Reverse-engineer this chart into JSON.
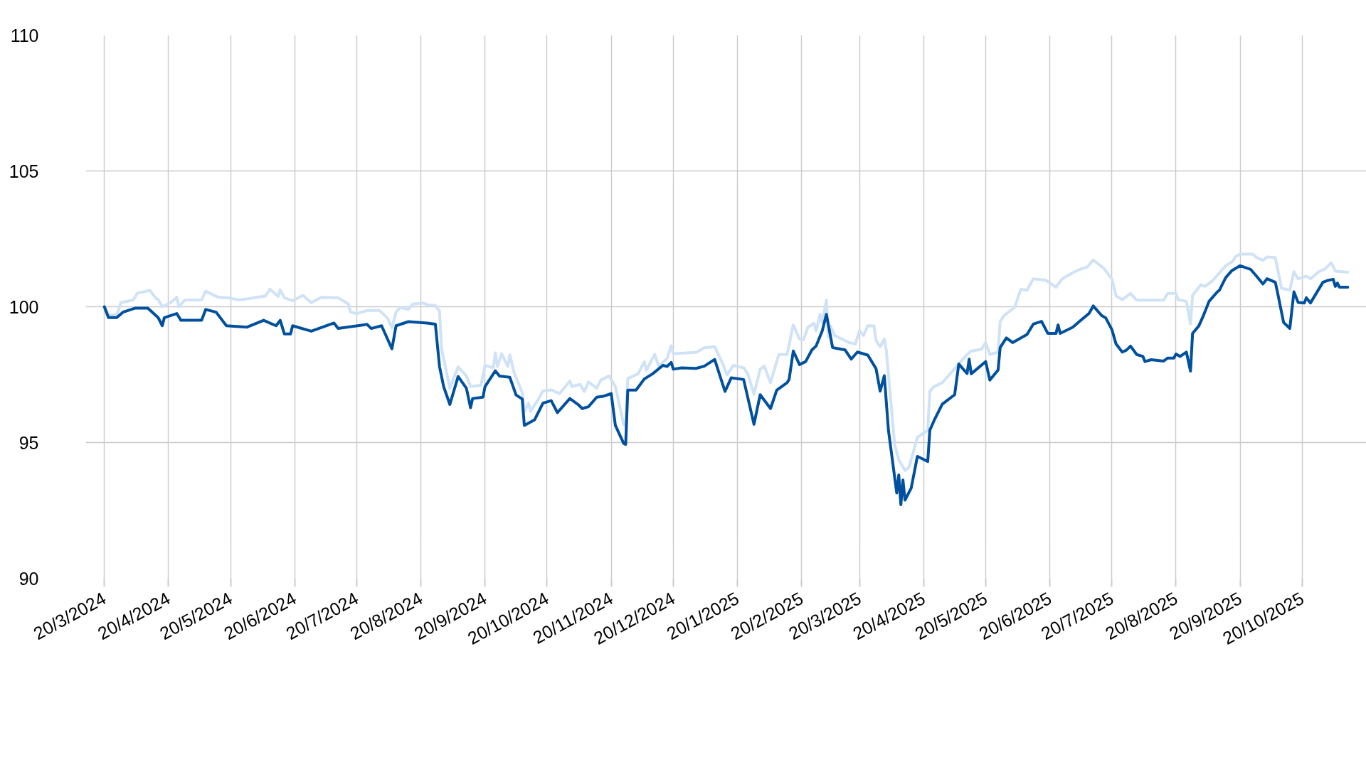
{
  "chart_data": {
    "type": "line",
    "xlim": [
      "2024-03-11",
      "2025-11-20"
    ],
    "ylim": [
      90,
      110
    ],
    "yticks": [
      90,
      95,
      100,
      105,
      110
    ],
    "xticks": [
      {
        "value": "2024-03-20",
        "label": "20/3/2024"
      },
      {
        "value": "2024-04-20",
        "label": "20/4/2024"
      },
      {
        "value": "2024-05-20",
        "label": "20/5/2024"
      },
      {
        "value": "2024-06-20",
        "label": "20/6/2024"
      },
      {
        "value": "2024-07-20",
        "label": "20/7/2024"
      },
      {
        "value": "2024-08-20",
        "label": "20/8/2024"
      },
      {
        "value": "2024-09-20",
        "label": "20/9/2024"
      },
      {
        "value": "2024-10-20",
        "label": "20/10/2024"
      },
      {
        "value": "2024-11-20",
        "label": "20/11/2024"
      },
      {
        "value": "2024-12-20",
        "label": "20/12/2024"
      },
      {
        "value": "2025-01-20",
        "label": "20/1/2025"
      },
      {
        "value": "2025-02-20",
        "label": "20/2/2025"
      },
      {
        "value": "2025-03-20",
        "label": "20/3/2025"
      },
      {
        "value": "2025-04-20",
        "label": "20/4/2025"
      },
      {
        "value": "2025-05-20",
        "label": "20/5/2025"
      },
      {
        "value": "2025-06-20",
        "label": "20/6/2025"
      },
      {
        "value": "2025-07-20",
        "label": "20/7/2025"
      },
      {
        "value": "2025-08-20",
        "label": "20/8/2025"
      },
      {
        "value": "2025-09-20",
        "label": "20/9/2025"
      },
      {
        "value": "2025-10-20",
        "label": "20/10/2025"
      }
    ],
    "grid": true,
    "series": [
      {
        "color": "#cfe2f6",
        "x": [
          "2024-03-20",
          "2024-03-22",
          "2024-03-26",
          "2024-03-28",
          "2024-04-03",
          "2024-04-05",
          "2024-04-11",
          "2024-04-14",
          "2024-04-15",
          "2024-04-17",
          "2024-04-21",
          "2024-04-24",
          "2024-04-25",
          "2024-04-28",
          "2024-05-06",
          "2024-05-08",
          "2024-05-14",
          "2024-05-19",
          "2024-05-24",
          "2024-05-29",
          "2024-06-06",
          "2024-06-08",
          "2024-06-12",
          "2024-06-13",
          "2024-06-15",
          "2024-06-19",
          "2024-06-24",
          "2024-06-28",
          "2024-07-03",
          "2024-07-11",
          "2024-07-16",
          "2024-07-17",
          "2024-07-20",
          "2024-07-25",
          "2024-07-31",
          "2024-08-04",
          "2024-08-06",
          "2024-08-08",
          "2024-08-10",
          "2024-08-14",
          "2024-08-16",
          "2024-08-21",
          "2024-08-24",
          "2024-08-27",
          "2024-08-29",
          "2024-08-30",
          "2024-09-03",
          "2024-09-07",
          "2024-09-11",
          "2024-09-13",
          "2024-09-18",
          "2024-09-20",
          "2024-09-24",
          "2024-09-25",
          "2024-09-26",
          "2024-09-28",
          "2024-10-01",
          "2024-10-02",
          "2024-10-04",
          "2024-10-08",
          "2024-10-09",
          "2024-10-11",
          "2024-10-12",
          "2024-10-16",
          "2024-10-18",
          "2024-10-22",
          "2024-10-26",
          "2024-10-31",
          "2024-11-01",
          "2024-11-05",
          "2024-11-07",
          "2024-11-09",
          "2024-11-13",
          "2024-11-15",
          "2024-11-19",
          "2024-11-22",
          "2024-11-26",
          "2024-11-27",
          "2024-11-28",
          "2024-12-03",
          "2024-12-06",
          "2024-12-07",
          "2024-12-11",
          "2024-12-13",
          "2024-12-17",
          "2024-12-19",
          "2024-12-20",
          "2024-12-31",
          "2025-01-04",
          "2025-01-09",
          "2025-01-13",
          "2025-01-15",
          "2025-01-18",
          "2025-01-23",
          "2025-01-25",
          "2025-01-28",
          "2025-01-31",
          "2025-02-02",
          "2025-02-05",
          "2025-02-09",
          "2025-02-13",
          "2025-02-16",
          "2025-02-19",
          "2025-02-21",
          "2025-02-23",
          "2025-02-26",
          "2025-02-27",
          "2025-03-01",
          "2025-03-02",
          "2025-03-04",
          "2025-03-05",
          "2025-03-06",
          "2025-03-08",
          "2025-03-15",
          "2025-03-18",
          "2025-03-20",
          "2025-03-22",
          "2025-03-24",
          "2025-03-27",
          "2025-03-28",
          "2025-03-30",
          "2025-04-01",
          "2025-04-02",
          "2025-04-06",
          "2025-04-08",
          "2025-04-11",
          "2025-04-13",
          "2025-04-17",
          "2025-04-22",
          "2025-04-23",
          "2025-04-25",
          "2025-04-29",
          "2025-05-05",
          "2025-05-08",
          "2025-05-11",
          "2025-05-13",
          "2025-05-18",
          "2025-05-20",
          "2025-05-22",
          "2025-05-26",
          "2025-05-27",
          "2025-05-29",
          "2025-06-03",
          "2025-06-06",
          "2025-06-09",
          "2025-06-12",
          "2025-06-18",
          "2025-06-23",
          "2025-06-26",
          "2025-06-28",
          "2025-07-02",
          "2025-07-05",
          "2025-07-08",
          "2025-07-11",
          "2025-07-16",
          "2025-07-20",
          "2025-07-22",
          "2025-07-25",
          "2025-07-29",
          "2025-08-01",
          "2025-08-14",
          "2025-08-16",
          "2025-08-20",
          "2025-08-21",
          "2025-08-25",
          "2025-08-27",
          "2025-08-28",
          "2025-09-01",
          "2025-09-03",
          "2025-09-07",
          "2025-09-10",
          "2025-09-13",
          "2025-09-16",
          "2025-09-18",
          "2025-09-20",
          "2025-09-26",
          "2025-09-28",
          "2025-10-01",
          "2025-10-03",
          "2025-10-07",
          "2025-10-10",
          "2025-10-14",
          "2025-10-16",
          "2025-10-18",
          "2025-10-22",
          "2025-10-24",
          "2025-10-28",
          "2025-10-31",
          "2025-11-03",
          "2025-11-05",
          "2025-11-11"
        ],
        "values": [
          100.0,
          99.7,
          99.7,
          100.15,
          100.25,
          100.5,
          100.6,
          100.3,
          100.27,
          100.0,
          100.15,
          100.35,
          100.0,
          100.25,
          100.25,
          100.57,
          100.35,
          100.33,
          100.25,
          100.3,
          100.4,
          100.65,
          100.38,
          100.62,
          100.33,
          100.22,
          100.42,
          100.15,
          100.35,
          100.33,
          100.1,
          99.8,
          99.75,
          99.86,
          99.86,
          99.57,
          99.22,
          99.8,
          99.97,
          99.9,
          100.1,
          100.14,
          100.05,
          100.05,
          99.84,
          98.45,
          97.0,
          97.78,
          97.45,
          97.06,
          97.1,
          97.84,
          97.75,
          98.3,
          97.8,
          98.27,
          97.8,
          98.23,
          97.58,
          96.84,
          96.15,
          96.45,
          96.15,
          96.62,
          96.9,
          96.94,
          96.8,
          97.26,
          97.06,
          97.14,
          96.88,
          97.23,
          97.0,
          97.3,
          97.45,
          97.06,
          95.67,
          95.63,
          97.36,
          97.53,
          97.97,
          97.66,
          98.25,
          97.8,
          98.1,
          98.56,
          98.27,
          98.32,
          98.49,
          98.53,
          97.88,
          97.49,
          97.84,
          97.75,
          97.53,
          96.77,
          97.7,
          97.81,
          97.2,
          98.24,
          98.24,
          99.33,
          98.81,
          98.78,
          99.24,
          99.39,
          99.11,
          99.72,
          99.42,
          100.24,
          98.89,
          99.29,
          98.94,
          98.68,
          98.63,
          99.11,
          98.94,
          99.3,
          99.29,
          98.76,
          98.52,
          98.81,
          98.37,
          94.93,
          94.36,
          93.97,
          94.1,
          95.19,
          95.45,
          96.89,
          97.06,
          97.2,
          97.72,
          97.98,
          98.24,
          98.37,
          98.43,
          98.68,
          98.24,
          98.33,
          99.46,
          99.68,
          99.98,
          100.64,
          100.61,
          101.03,
          100.98,
          100.72,
          101.03,
          101.12,
          101.29,
          101.39,
          101.46,
          101.72,
          101.42,
          101.03,
          100.4,
          100.26,
          100.49,
          100.24,
          100.24,
          100.49,
          100.49,
          100.26,
          100.2,
          99.37,
          100.42,
          100.81,
          100.75,
          100.98,
          101.25,
          101.51,
          101.64,
          101.86,
          101.94,
          101.94,
          101.81,
          101.71,
          101.83,
          101.81,
          100.68,
          100.61,
          101.29,
          101.03,
          101.13,
          101.03,
          101.29,
          101.39,
          101.62,
          101.31,
          101.27
        ]
      },
      {
        "color": "#00509e",
        "x": [
          "2024-03-20",
          "2024-03-22",
          "2024-03-26",
          "2024-03-29",
          "2024-04-04",
          "2024-04-10",
          "2024-04-15",
          "2024-04-17",
          "2024-04-18",
          "2024-04-24",
          "2024-04-26",
          "2024-05-06",
          "2024-05-08",
          "2024-05-13",
          "2024-05-18",
          "2024-05-28",
          "2024-06-05",
          "2024-06-11",
          "2024-06-13",
          "2024-06-15",
          "2024-06-18",
          "2024-06-19",
          "2024-06-28",
          "2024-07-09",
          "2024-07-11",
          "2024-07-25",
          "2024-07-27",
          "2024-08-01",
          "2024-08-06",
          "2024-08-08",
          "2024-08-14",
          "2024-08-23",
          "2024-08-27",
          "2024-08-29",
          "2024-08-31",
          "2024-09-03",
          "2024-09-07",
          "2024-09-11",
          "2024-09-13",
          "2024-09-14",
          "2024-09-19",
          "2024-09-20",
          "2024-09-25",
          "2024-09-27",
          "2024-10-02",
          "2024-10-05",
          "2024-10-08",
          "2024-10-09",
          "2024-10-14",
          "2024-10-18",
          "2024-10-22",
          "2024-10-25",
          "2024-10-31",
          "2024-11-04",
          "2024-11-06",
          "2024-11-09",
          "2024-11-13",
          "2024-11-16",
          "2024-11-20",
          "2024-11-22",
          "2024-11-26",
          "2024-11-27",
          "2024-11-28",
          "2024-12-02",
          "2024-12-06",
          "2024-12-10",
          "2024-12-15",
          "2024-12-17",
          "2024-12-19",
          "2024-12-20",
          "2024-12-24",
          "2024-12-31",
          "2025-01-04",
          "2025-01-09",
          "2025-01-14",
          "2025-01-17",
          "2025-01-23",
          "2025-01-28",
          "2025-01-31",
          "2025-02-05",
          "2025-02-08",
          "2025-02-13",
          "2025-02-14",
          "2025-02-16",
          "2025-02-19",
          "2025-02-22",
          "2025-02-25",
          "2025-02-27",
          "2025-03-02",
          "2025-03-04",
          "2025-03-07",
          "2025-03-08",
          "2025-03-13",
          "2025-03-16",
          "2025-03-19",
          "2025-03-24",
          "2025-03-28",
          "2025-03-30",
          "2025-04-01",
          "2025-04-03",
          "2025-04-07",
          "2025-04-08",
          "2025-04-09",
          "2025-04-10",
          "2025-04-11",
          "2025-04-14",
          "2025-04-17",
          "2025-04-22",
          "2025-04-23",
          "2025-04-25",
          "2025-04-29",
          "2025-05-05",
          "2025-05-07",
          "2025-05-11",
          "2025-05-12",
          "2025-05-13",
          "2025-05-20",
          "2025-05-22",
          "2025-05-26",
          "2025-05-27",
          "2025-05-30",
          "2025-06-02",
          "2025-06-09",
          "2025-06-12",
          "2025-06-16",
          "2025-06-19",
          "2025-06-23",
          "2025-06-24",
          "2025-06-25",
          "2025-07-01",
          "2025-07-05",
          "2025-07-09",
          "2025-07-11",
          "2025-07-15",
          "2025-07-17",
          "2025-07-20",
          "2025-07-22",
          "2025-07-25",
          "2025-07-27",
          "2025-07-29",
          "2025-08-01",
          "2025-08-04",
          "2025-08-05",
          "2025-08-08",
          "2025-08-14",
          "2025-08-16",
          "2025-08-19",
          "2025-08-20",
          "2025-08-22",
          "2025-08-25",
          "2025-08-27",
          "2025-08-28",
          "2025-08-31",
          "2025-09-02",
          "2025-09-05",
          "2025-09-09",
          "2025-09-10",
          "2025-09-13",
          "2025-09-16",
          "2025-09-20",
          "2025-09-25",
          "2025-09-28",
          "2025-10-01",
          "2025-10-03",
          "2025-10-07",
          "2025-10-08",
          "2025-10-11",
          "2025-10-14",
          "2025-10-16",
          "2025-10-18",
          "2025-10-21",
          "2025-10-22",
          "2025-10-24",
          "2025-10-30",
          "2025-11-01",
          "2025-11-04",
          "2025-11-05",
          "2025-11-06",
          "2025-11-07",
          "2025-11-11"
        ],
        "values": [
          100.0,
          99.6,
          99.6,
          99.8,
          99.95,
          99.95,
          99.6,
          99.3,
          99.6,
          99.75,
          99.5,
          99.5,
          99.9,
          99.8,
          99.3,
          99.25,
          99.5,
          99.3,
          99.5,
          99.0,
          99.0,
          99.3,
          99.1,
          99.4,
          99.2,
          99.35,
          99.2,
          99.3,
          98.45,
          99.3,
          99.45,
          99.4,
          99.36,
          97.8,
          97.06,
          96.4,
          97.43,
          97.0,
          96.28,
          96.62,
          96.67,
          97.06,
          97.64,
          97.45,
          97.4,
          96.75,
          96.6,
          95.63,
          95.84,
          96.45,
          96.54,
          96.1,
          96.62,
          96.4,
          96.25,
          96.32,
          96.67,
          96.7,
          96.8,
          95.63,
          94.97,
          94.93,
          96.93,
          96.93,
          97.34,
          97.53,
          97.84,
          97.8,
          97.95,
          97.7,
          97.75,
          97.73,
          97.81,
          98.06,
          96.88,
          97.38,
          97.32,
          95.67,
          96.76,
          96.25,
          96.93,
          97.2,
          97.33,
          98.37,
          97.87,
          97.98,
          98.41,
          98.55,
          99.11,
          99.72,
          98.5,
          98.48,
          98.41,
          98.07,
          98.33,
          98.22,
          97.72,
          96.89,
          97.46,
          95.45,
          93.14,
          93.8,
          92.71,
          93.62,
          92.88,
          93.32,
          94.49,
          94.3,
          95.45,
          95.8,
          96.41,
          96.76,
          97.89,
          97.54,
          98.07,
          97.53,
          97.98,
          97.3,
          97.67,
          98.5,
          98.85,
          98.68,
          98.98,
          99.36,
          99.46,
          99.02,
          99.02,
          99.33,
          99.02,
          99.24,
          99.5,
          99.76,
          100.03,
          99.68,
          99.59,
          99.16,
          98.63,
          98.33,
          98.4,
          98.55,
          98.24,
          98.17,
          97.98,
          98.05,
          98.0,
          98.11,
          98.11,
          98.26,
          98.17,
          98.33,
          97.63,
          99.02,
          99.29,
          99.63,
          100.2,
          100.55,
          100.61,
          101.07,
          101.33,
          101.51,
          101.38,
          101.12,
          100.84,
          101.03,
          100.9,
          100.55,
          99.42,
          99.2,
          100.55,
          100.16,
          100.14,
          100.33,
          100.14,
          100.9,
          100.96,
          101.01,
          100.75,
          100.87,
          100.72,
          100.72
        ]
      }
    ]
  }
}
